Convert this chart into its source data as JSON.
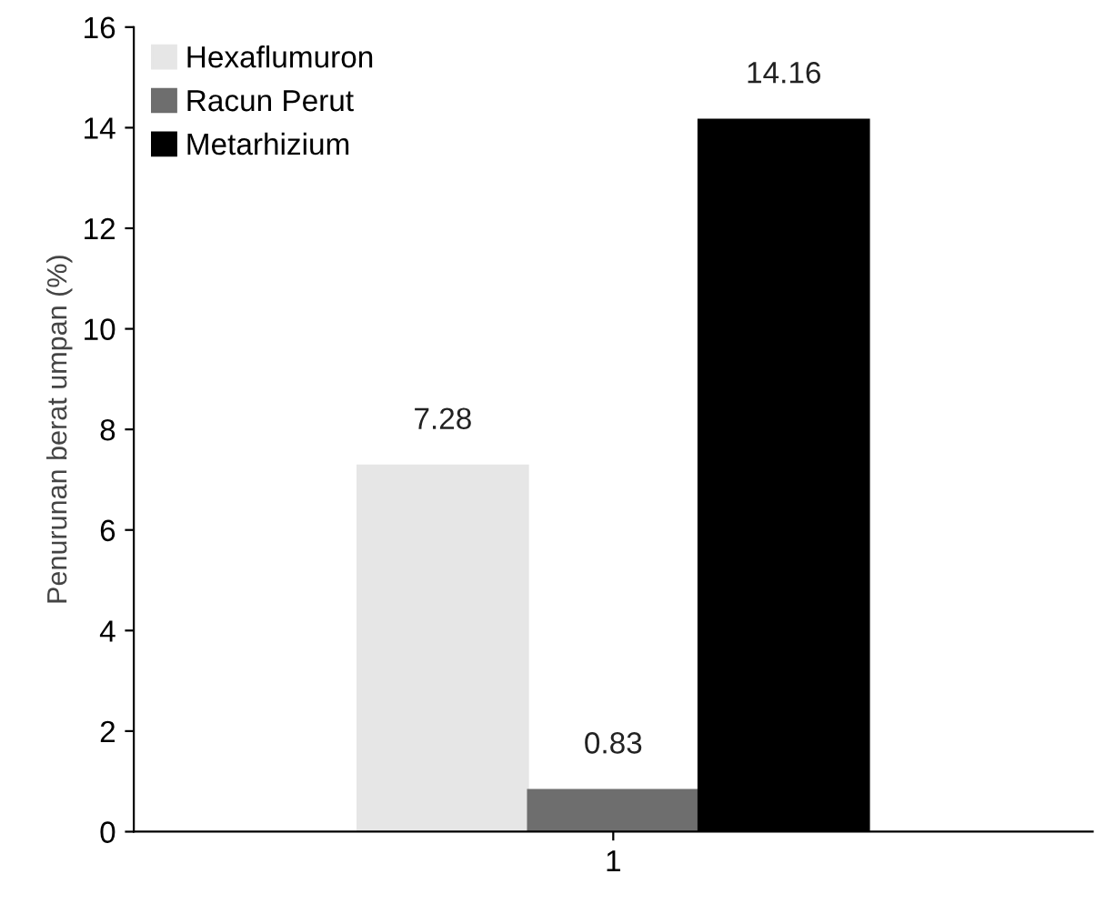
{
  "chart_data": {
    "type": "bar",
    "ylabel": "Penurunan berat umpan (%)",
    "categories": [
      "1"
    ],
    "series": [
      {
        "name": "Hexaflumuron",
        "color": "#e6e6e6",
        "values": [
          7.28
        ]
      },
      {
        "name": "Racun Perut",
        "color": "#6e6e6e",
        "values": [
          0.83
        ]
      },
      {
        "name": "Metarhizium",
        "color": "#000000",
        "values": [
          14.16
        ]
      }
    ],
    "ylim": [
      0,
      16
    ],
    "yticks": [
      0,
      2,
      4,
      6,
      8,
      10,
      12,
      14,
      16
    ],
    "grid": false,
    "legend": "top left",
    "data_labels": true
  }
}
